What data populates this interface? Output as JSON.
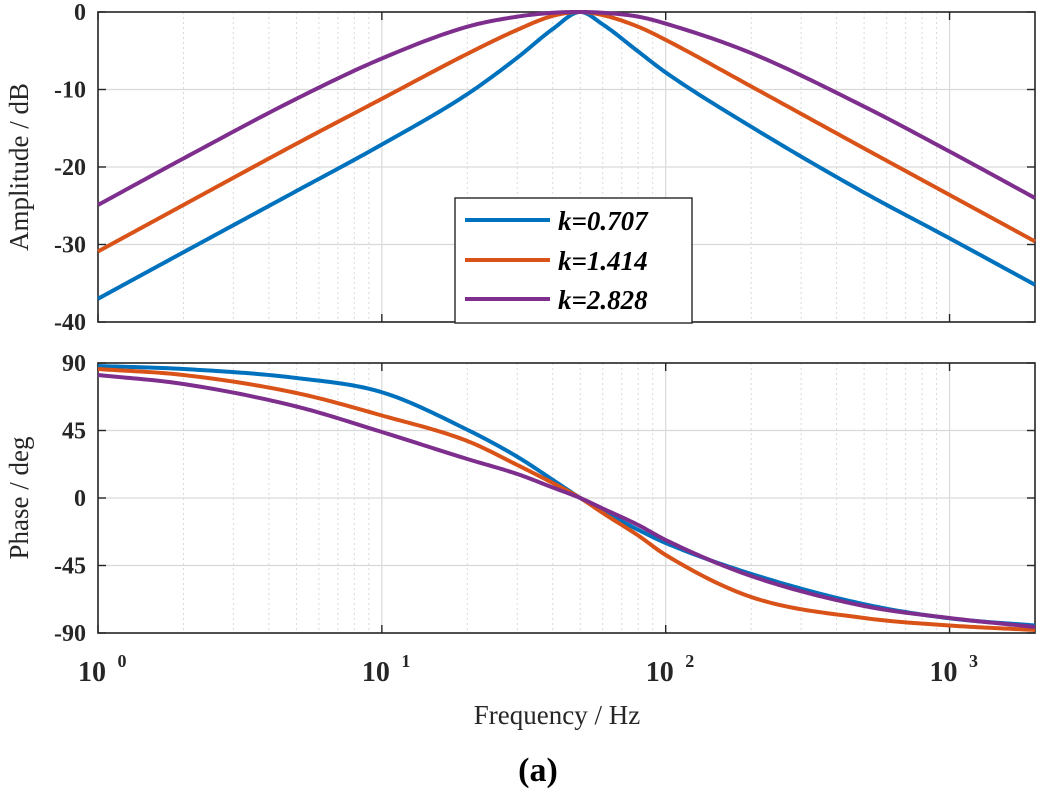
{
  "figure": {
    "caption": "(a)"
  },
  "colors": {
    "blue": "#0072BD",
    "orange": "#D95319",
    "purple": "#7E2F8E",
    "grid": "#d9d9d9",
    "axis": "#262626"
  },
  "chart_data": [
    {
      "type": "line",
      "title": "",
      "xlabel": "",
      "ylabel": "Amplitude / dB",
      "xscale": "log",
      "xlim": [
        1,
        2000
      ],
      "ylim": [
        -40,
        0
      ],
      "yticks": [
        0,
        -10,
        -20,
        -30,
        -40
      ],
      "ytick_labels": [
        "0",
        "-10",
        "-20",
        "-30",
        "-40"
      ],
      "grid": true,
      "legend": {
        "location": "center-bottom"
      },
      "x": [
        1,
        2,
        5,
        10,
        20,
        30,
        40,
        50,
        60,
        80,
        100,
        200,
        500,
        1000,
        2000
      ],
      "series": [
        {
          "name": "k=0.707",
          "legend_base": "k=",
          "legend_value": "0.707",
          "color": "#0072BD",
          "values": [
            -37.0,
            -31.0,
            -23.1,
            -17.1,
            -10.6,
            -5.9,
            -2.2,
            0.0,
            -1.6,
            -5.1,
            -7.8,
            -14.8,
            -23.3,
            -29.2,
            -35.2
          ]
        },
        {
          "name": "k=1.414",
          "legend_base": "k=",
          "legend_value": "1.414",
          "color": "#D95319",
          "values": [
            -30.9,
            -24.9,
            -17.0,
            -11.2,
            -5.4,
            -2.3,
            -0.5,
            0.0,
            -0.4,
            -1.9,
            -3.6,
            -9.6,
            -17.6,
            -23.6,
            -29.6
          ]
        },
        {
          "name": "k=2.828",
          "legend_base": "k=",
          "legend_value": "2.828",
          "color": "#7E2F8E",
          "values": [
            -24.9,
            -18.9,
            -11.2,
            -6.0,
            -1.9,
            -0.6,
            -0.1,
            0.0,
            -0.1,
            -0.6,
            -1.5,
            -5.3,
            -12.2,
            -18.0,
            -24.0
          ]
        }
      ]
    },
    {
      "type": "line",
      "title": "",
      "xlabel": "Frequency / Hz",
      "ylabel": "Phase / deg",
      "xscale": "log",
      "xlim": [
        1,
        2000
      ],
      "ylim": [
        -90,
        90
      ],
      "yticks": [
        90,
        45,
        0,
        -45,
        -90
      ],
      "ytick_labels": [
        "90",
        "45",
        "0",
        "-45",
        "-90"
      ],
      "xticks": [
        1,
        10,
        100,
        1000
      ],
      "xtick_labels": [
        {
          "base": "10",
          "exp": "0"
        },
        {
          "base": "10",
          "exp": "1"
        },
        {
          "base": "10",
          "exp": "2"
        },
        {
          "base": "10",
          "exp": "3"
        }
      ],
      "grid": true,
      "x": [
        1,
        2,
        5,
        10,
        20,
        30,
        40,
        50,
        60,
        80,
        100,
        200,
        500,
        1000,
        2000
      ],
      "series": [
        {
          "name": "k=0.707",
          "color": "#0072BD",
          "values": [
            88.0,
            86.0,
            80.0,
            70.5,
            45.5,
            27.5,
            12.1,
            0.0,
            -8.7,
            -21.2,
            -30.0,
            -50.6,
            -70.8,
            -80.2,
            -85.0
          ]
        },
        {
          "name": "k=1.414",
          "color": "#D95319",
          "values": [
            86.0,
            82.0,
            70.0,
            55.0,
            38.0,
            22.0,
            10.0,
            0.0,
            -10.0,
            -25.0,
            -38.0,
            -66.0,
            -80.0,
            -85.0,
            -88.0
          ]
        },
        {
          "name": "k=2.828",
          "color": "#7E2F8E",
          "values": [
            82.0,
            76.0,
            61.0,
            44.0,
            26.0,
            16.0,
            7.0,
            0.0,
            -7.0,
            -18.0,
            -28.0,
            -52.0,
            -72.0,
            -80.0,
            -86.0
          ]
        }
      ]
    }
  ]
}
